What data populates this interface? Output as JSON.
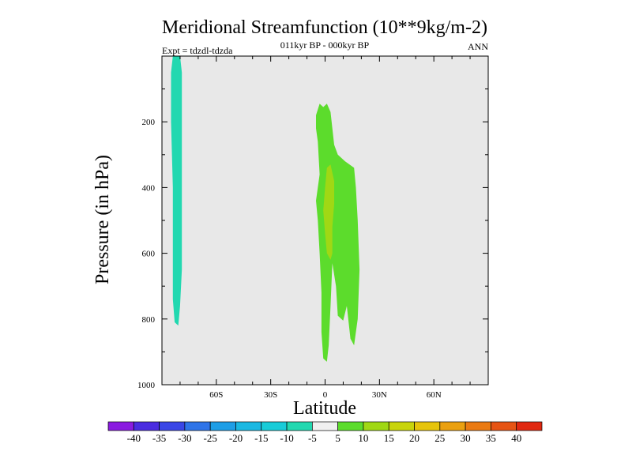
{
  "chart_data": {
    "type": "contour",
    "title": "Meridional Streamfunction (10**9kg/m-2)",
    "subtitle": "011kyr BP - 000kyr BP",
    "left_label": "Expt = tdzdl-tdzda",
    "right_label": "ANN",
    "xlabel": "Latitude",
    "ylabel": "Pressure (in hPa)",
    "xlim": [
      -90,
      90
    ],
    "ylim": [
      1000,
      0
    ],
    "x_ticks": [
      {
        "value": -60,
        "label": "60S"
      },
      {
        "value": -30,
        "label": "30S"
      },
      {
        "value": 0,
        "label": "0"
      },
      {
        "value": 30,
        "label": "30N"
      },
      {
        "value": 60,
        "label": "60N"
      }
    ],
    "y_ticks": [
      {
        "value": 200,
        "label": "200"
      },
      {
        "value": 400,
        "label": "400"
      },
      {
        "value": 600,
        "label": "600"
      },
      {
        "value": 800,
        "label": "800"
      },
      {
        "value": 1000,
        "label": "1000"
      }
    ],
    "background_color": "#e8e8e8",
    "regions": [
      {
        "name": "negative-cell-south",
        "level": "-10 to -5",
        "color": "#22d8b0",
        "points": [
          [
            -84,
            0
          ],
          [
            -80,
            0
          ],
          [
            -79,
            50
          ],
          [
            -79,
            300
          ],
          [
            -79,
            500
          ],
          [
            -79,
            650
          ],
          [
            -80,
            760
          ],
          [
            -81,
            820
          ],
          [
            -83,
            810
          ],
          [
            -84,
            740
          ],
          [
            -84,
            600
          ],
          [
            -84,
            400
          ],
          [
            -85,
            200
          ],
          [
            -85,
            50
          ]
        ]
      },
      {
        "name": "positive-cell-equator",
        "level": "5 to 10",
        "color": "#5cdc2c",
        "points": [
          [
            -5,
            180
          ],
          [
            -3,
            145
          ],
          [
            -1,
            155
          ],
          [
            1,
            145
          ],
          [
            3,
            170
          ],
          [
            5,
            270
          ],
          [
            7,
            300
          ],
          [
            11,
            320
          ],
          [
            16,
            340
          ],
          [
            17,
            400
          ],
          [
            18,
            500
          ],
          [
            19,
            650
          ],
          [
            18,
            800
          ],
          [
            16,
            880
          ],
          [
            14,
            860
          ],
          [
            12,
            760
          ],
          [
            10,
            805
          ],
          [
            7,
            790
          ],
          [
            6,
            700
          ],
          [
            4,
            630
          ],
          [
            3,
            760
          ],
          [
            2,
            880
          ],
          [
            1,
            930
          ],
          [
            -1,
            920
          ],
          [
            -2,
            840
          ],
          [
            -2,
            720
          ],
          [
            -3,
            600
          ],
          [
            -4,
            500
          ],
          [
            -5,
            440
          ],
          [
            -3,
            360
          ],
          [
            -4,
            260
          ],
          [
            -5,
            220
          ]
        ]
      },
      {
        "name": "positive-cell-core",
        "level": "10 to 15",
        "color": "#a0d814",
        "points": [
          [
            1,
            340
          ],
          [
            3,
            330
          ],
          [
            5,
            380
          ],
          [
            5,
            450
          ],
          [
            4,
            520
          ],
          [
            4,
            600
          ],
          [
            3,
            620
          ],
          [
            1,
            600
          ],
          [
            0,
            540
          ],
          [
            -1,
            470
          ],
          [
            0,
            400
          ]
        ]
      }
    ],
    "colorbar": {
      "labels": [
        "-40",
        "-35",
        "-30",
        "-25",
        "-20",
        "-15",
        "-10",
        "-5",
        "5",
        "10",
        "15",
        "20",
        "25",
        "30",
        "35",
        "40"
      ],
      "colors": [
        "#8a1be0",
        "#4a2ce0",
        "#3a46e6",
        "#2f74e8",
        "#1e9ee6",
        "#1ab8e2",
        "#18ccd8",
        "#22d8b0",
        "#f0f0f0",
        "#5cdc2c",
        "#a0d814",
        "#c8d40c",
        "#e6c40c",
        "#eaa010",
        "#ea7a12",
        "#e65414",
        "#e02810"
      ]
    }
  }
}
